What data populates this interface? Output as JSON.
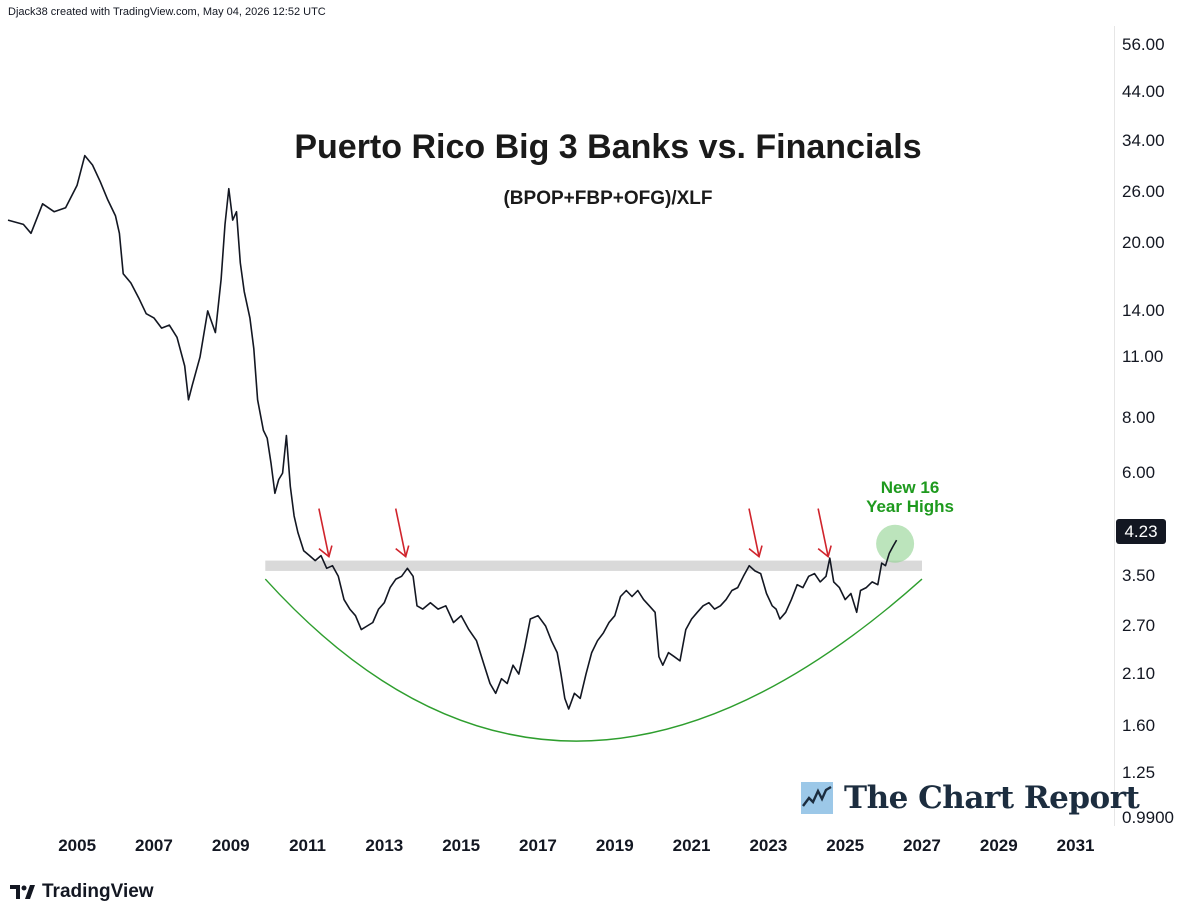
{
  "header": {
    "credit": "Djack38 created with TradingView.com, May 04, 2026 12:52 UTC"
  },
  "chart_data": {
    "type": "line",
    "title": "Puerto Rico Big 3 Banks vs. Financials",
    "subtitle": "(BPOP+FBP+OFG)/XLF",
    "y_scale": "log",
    "ylim": [
      0.95,
      62
    ],
    "xlim": [
      2003.2,
      2032.0
    ],
    "x_ticks": [
      "2005",
      "2007",
      "2009",
      "2011",
      "2013",
      "2015",
      "2017",
      "2019",
      "2021",
      "2023",
      "2025",
      "2027",
      "2029",
      "2031"
    ],
    "y_ticks": [
      "56.00",
      "44.00",
      "34.00",
      "26.00",
      "20.00",
      "14.00",
      "11.00",
      "8.00",
      "6.00",
      "4.50",
      "3.50",
      "2.70",
      "2.10",
      "1.60",
      "1.25",
      "0.9900"
    ],
    "last_value": "4.23",
    "series": [
      {
        "color": "#131722",
        "points": [
          [
            2003.2,
            22.5
          ],
          [
            2003.6,
            22.0
          ],
          [
            2003.8,
            21.0
          ],
          [
            2004.1,
            24.5
          ],
          [
            2004.4,
            23.5
          ],
          [
            2004.7,
            24.0
          ],
          [
            2005.0,
            27.0
          ],
          [
            2005.2,
            31.5
          ],
          [
            2005.4,
            30.0
          ],
          [
            2005.6,
            27.5
          ],
          [
            2005.8,
            25.0
          ],
          [
            2006.0,
            23.0
          ],
          [
            2006.1,
            21.0
          ],
          [
            2006.2,
            17.0
          ],
          [
            2006.4,
            16.2
          ],
          [
            2006.6,
            15.0
          ],
          [
            2006.8,
            13.8
          ],
          [
            2007.0,
            13.5
          ],
          [
            2007.2,
            12.8
          ],
          [
            2007.4,
            13.0
          ],
          [
            2007.6,
            12.2
          ],
          [
            2007.8,
            10.5
          ],
          [
            2007.9,
            8.8
          ],
          [
            2008.0,
            9.5
          ],
          [
            2008.2,
            11.0
          ],
          [
            2008.4,
            14.0
          ],
          [
            2008.6,
            12.5
          ],
          [
            2008.75,
            16.5
          ],
          [
            2008.85,
            22.0
          ],
          [
            2008.95,
            26.5
          ],
          [
            2009.05,
            22.5
          ],
          [
            2009.15,
            23.5
          ],
          [
            2009.25,
            18.0
          ],
          [
            2009.35,
            15.5
          ],
          [
            2009.5,
            13.5
          ],
          [
            2009.6,
            11.5
          ],
          [
            2009.7,
            8.8
          ],
          [
            2009.85,
            7.5
          ],
          [
            2009.95,
            7.2
          ],
          [
            2010.05,
            6.3
          ],
          [
            2010.15,
            5.4
          ],
          [
            2010.25,
            5.8
          ],
          [
            2010.35,
            6.0
          ],
          [
            2010.45,
            7.3
          ],
          [
            2010.55,
            5.6
          ],
          [
            2010.65,
            4.8
          ],
          [
            2010.75,
            4.4
          ],
          [
            2010.9,
            4.0
          ],
          [
            2011.05,
            3.9
          ],
          [
            2011.2,
            3.8
          ],
          [
            2011.35,
            3.9
          ],
          [
            2011.5,
            3.65
          ],
          [
            2011.65,
            3.7
          ],
          [
            2011.8,
            3.5
          ],
          [
            2011.95,
            3.1
          ],
          [
            2012.1,
            2.95
          ],
          [
            2012.25,
            2.85
          ],
          [
            2012.4,
            2.65
          ],
          [
            2012.55,
            2.7
          ],
          [
            2012.7,
            2.75
          ],
          [
            2012.85,
            2.95
          ],
          [
            2013.0,
            3.05
          ],
          [
            2013.15,
            3.3
          ],
          [
            2013.3,
            3.45
          ],
          [
            2013.45,
            3.5
          ],
          [
            2013.6,
            3.65
          ],
          [
            2013.75,
            3.5
          ],
          [
            2013.85,
            3.0
          ],
          [
            2014.0,
            2.95
          ],
          [
            2014.2,
            3.05
          ],
          [
            2014.4,
            2.95
          ],
          [
            2014.6,
            3.0
          ],
          [
            2014.8,
            2.75
          ],
          [
            2015.0,
            2.85
          ],
          [
            2015.2,
            2.65
          ],
          [
            2015.4,
            2.5
          ],
          [
            2015.6,
            2.2
          ],
          [
            2015.75,
            2.0
          ],
          [
            2015.9,
            1.9
          ],
          [
            2016.05,
            2.05
          ],
          [
            2016.2,
            2.0
          ],
          [
            2016.35,
            2.2
          ],
          [
            2016.5,
            2.1
          ],
          [
            2016.65,
            2.4
          ],
          [
            2016.8,
            2.8
          ],
          [
            2017.0,
            2.85
          ],
          [
            2017.2,
            2.7
          ],
          [
            2017.35,
            2.5
          ],
          [
            2017.5,
            2.35
          ],
          [
            2017.6,
            2.1
          ],
          [
            2017.7,
            1.85
          ],
          [
            2017.8,
            1.75
          ],
          [
            2017.95,
            1.9
          ],
          [
            2018.1,
            1.85
          ],
          [
            2018.25,
            2.1
          ],
          [
            2018.4,
            2.35
          ],
          [
            2018.55,
            2.5
          ],
          [
            2018.7,
            2.6
          ],
          [
            2018.85,
            2.75
          ],
          [
            2019.0,
            2.85
          ],
          [
            2019.15,
            3.15
          ],
          [
            2019.3,
            3.25
          ],
          [
            2019.45,
            3.15
          ],
          [
            2019.6,
            3.25
          ],
          [
            2019.75,
            3.1
          ],
          [
            2019.9,
            3.0
          ],
          [
            2020.05,
            2.9
          ],
          [
            2020.15,
            2.3
          ],
          [
            2020.25,
            2.2
          ],
          [
            2020.4,
            2.35
          ],
          [
            2020.55,
            2.3
          ],
          [
            2020.7,
            2.25
          ],
          [
            2020.85,
            2.65
          ],
          [
            2021.0,
            2.8
          ],
          [
            2021.15,
            2.9
          ],
          [
            2021.3,
            3.0
          ],
          [
            2021.45,
            3.05
          ],
          [
            2021.6,
            2.95
          ],
          [
            2021.75,
            3.0
          ],
          [
            2021.9,
            3.1
          ],
          [
            2022.05,
            3.25
          ],
          [
            2022.2,
            3.3
          ],
          [
            2022.35,
            3.5
          ],
          [
            2022.5,
            3.7
          ],
          [
            2022.65,
            3.6
          ],
          [
            2022.8,
            3.55
          ],
          [
            2022.95,
            3.2
          ],
          [
            2023.1,
            3.0
          ],
          [
            2023.2,
            2.95
          ],
          [
            2023.3,
            2.8
          ],
          [
            2023.45,
            2.9
          ],
          [
            2023.6,
            3.1
          ],
          [
            2023.75,
            3.35
          ],
          [
            2023.9,
            3.3
          ],
          [
            2024.05,
            3.5
          ],
          [
            2024.2,
            3.55
          ],
          [
            2024.35,
            3.4
          ],
          [
            2024.5,
            3.5
          ],
          [
            2024.6,
            3.85
          ],
          [
            2024.7,
            3.4
          ],
          [
            2024.85,
            3.3
          ],
          [
            2025.0,
            3.1
          ],
          [
            2025.15,
            3.2
          ],
          [
            2025.3,
            2.9
          ],
          [
            2025.4,
            3.25
          ],
          [
            2025.55,
            3.3
          ],
          [
            2025.7,
            3.4
          ],
          [
            2025.85,
            3.35
          ],
          [
            2025.95,
            3.75
          ],
          [
            2026.05,
            3.7
          ],
          [
            2026.15,
            3.95
          ],
          [
            2026.25,
            4.1
          ],
          [
            2026.34,
            4.23
          ]
        ]
      }
    ],
    "resistance_band": {
      "y_low": 3.6,
      "y_high": 3.8,
      "x_start": 2009.9,
      "x_end": 2027.0
    },
    "arrows_x": [
      2011.4,
      2013.4,
      2022.6,
      2024.4
    ],
    "arc": {
      "x_start": 2009.9,
      "y_start": 3.45,
      "x_mid": 2018.0,
      "y_mid": 1.48,
      "x_end": 2027.0,
      "y_end": 3.45
    },
    "highlight": {
      "x": 2026.3,
      "y": 4.15
    },
    "annotation": [
      "New 16",
      "Year Highs"
    ],
    "colors": {
      "line": "#131722",
      "arrow": "#d0242c",
      "arc": "#2e9e2e",
      "annotation": "#1e9a1e",
      "highlight": "#8fd28f",
      "band": "#d9d9d9"
    }
  },
  "brand": {
    "name": "The Chart Report"
  },
  "footer": {
    "platform": "TradingView"
  }
}
